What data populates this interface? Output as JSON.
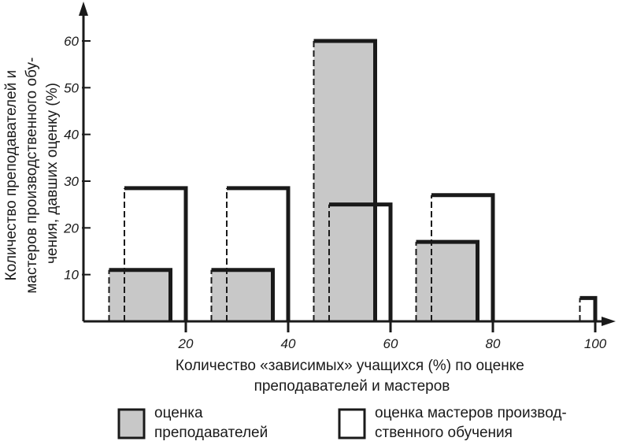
{
  "chart_data": {
    "type": "bar",
    "xlabel": [
      "Количество «зависимых» учащихся (%) по оценке",
      "преподавателей и мастеров"
    ],
    "ylabel": [
      "Количество преподавателей и",
      "мастеров производственного обу-",
      "чения, давших оценку (%)"
    ],
    "x_ticks": [
      20,
      40,
      60,
      80,
      100
    ],
    "y_ticks": [
      10,
      20,
      30,
      40,
      50,
      60
    ],
    "xlim": [
      0,
      105
    ],
    "ylim": [
      0,
      70
    ],
    "grid": false,
    "categories": [
      "0–20",
      "20–40",
      "40–60",
      "60–80",
      "80–100"
    ],
    "series": [
      {
        "name": "оценка преподавателей",
        "color": "#c8c8c8",
        "bins": [
          {
            "x_start": 5,
            "x_end": 17,
            "value": 11
          },
          {
            "x_start": 25,
            "x_end": 37,
            "value": 11
          },
          {
            "x_start": 45,
            "x_end": 57,
            "value": 60
          },
          {
            "x_start": 65,
            "x_end": 77,
            "value": 17
          },
          {
            "x_start": 85,
            "x_end": 97,
            "value": 0
          }
        ]
      },
      {
        "name": "оценка мастеров производственного обучения",
        "color": "#ffffff",
        "bins": [
          {
            "x_start": 8,
            "x_end": 20,
            "value": 28.5
          },
          {
            "x_start": 28,
            "x_end": 40,
            "value": 28.5
          },
          {
            "x_start": 48,
            "x_end": 60,
            "value": 25
          },
          {
            "x_start": 68,
            "x_end": 80,
            "value": 27
          },
          {
            "x_start": 97,
            "x_end": 100,
            "value": 5
          }
        ]
      }
    ],
    "legend": {
      "placement": "bottom",
      "items": [
        {
          "label": [
            "оценка",
            "преподавателей"
          ],
          "fill": "#c8c8c8"
        },
        {
          "label": [
            "оценка мастеров производ-",
            "ственного обучения"
          ],
          "fill": "#ffffff"
        }
      ]
    }
  }
}
